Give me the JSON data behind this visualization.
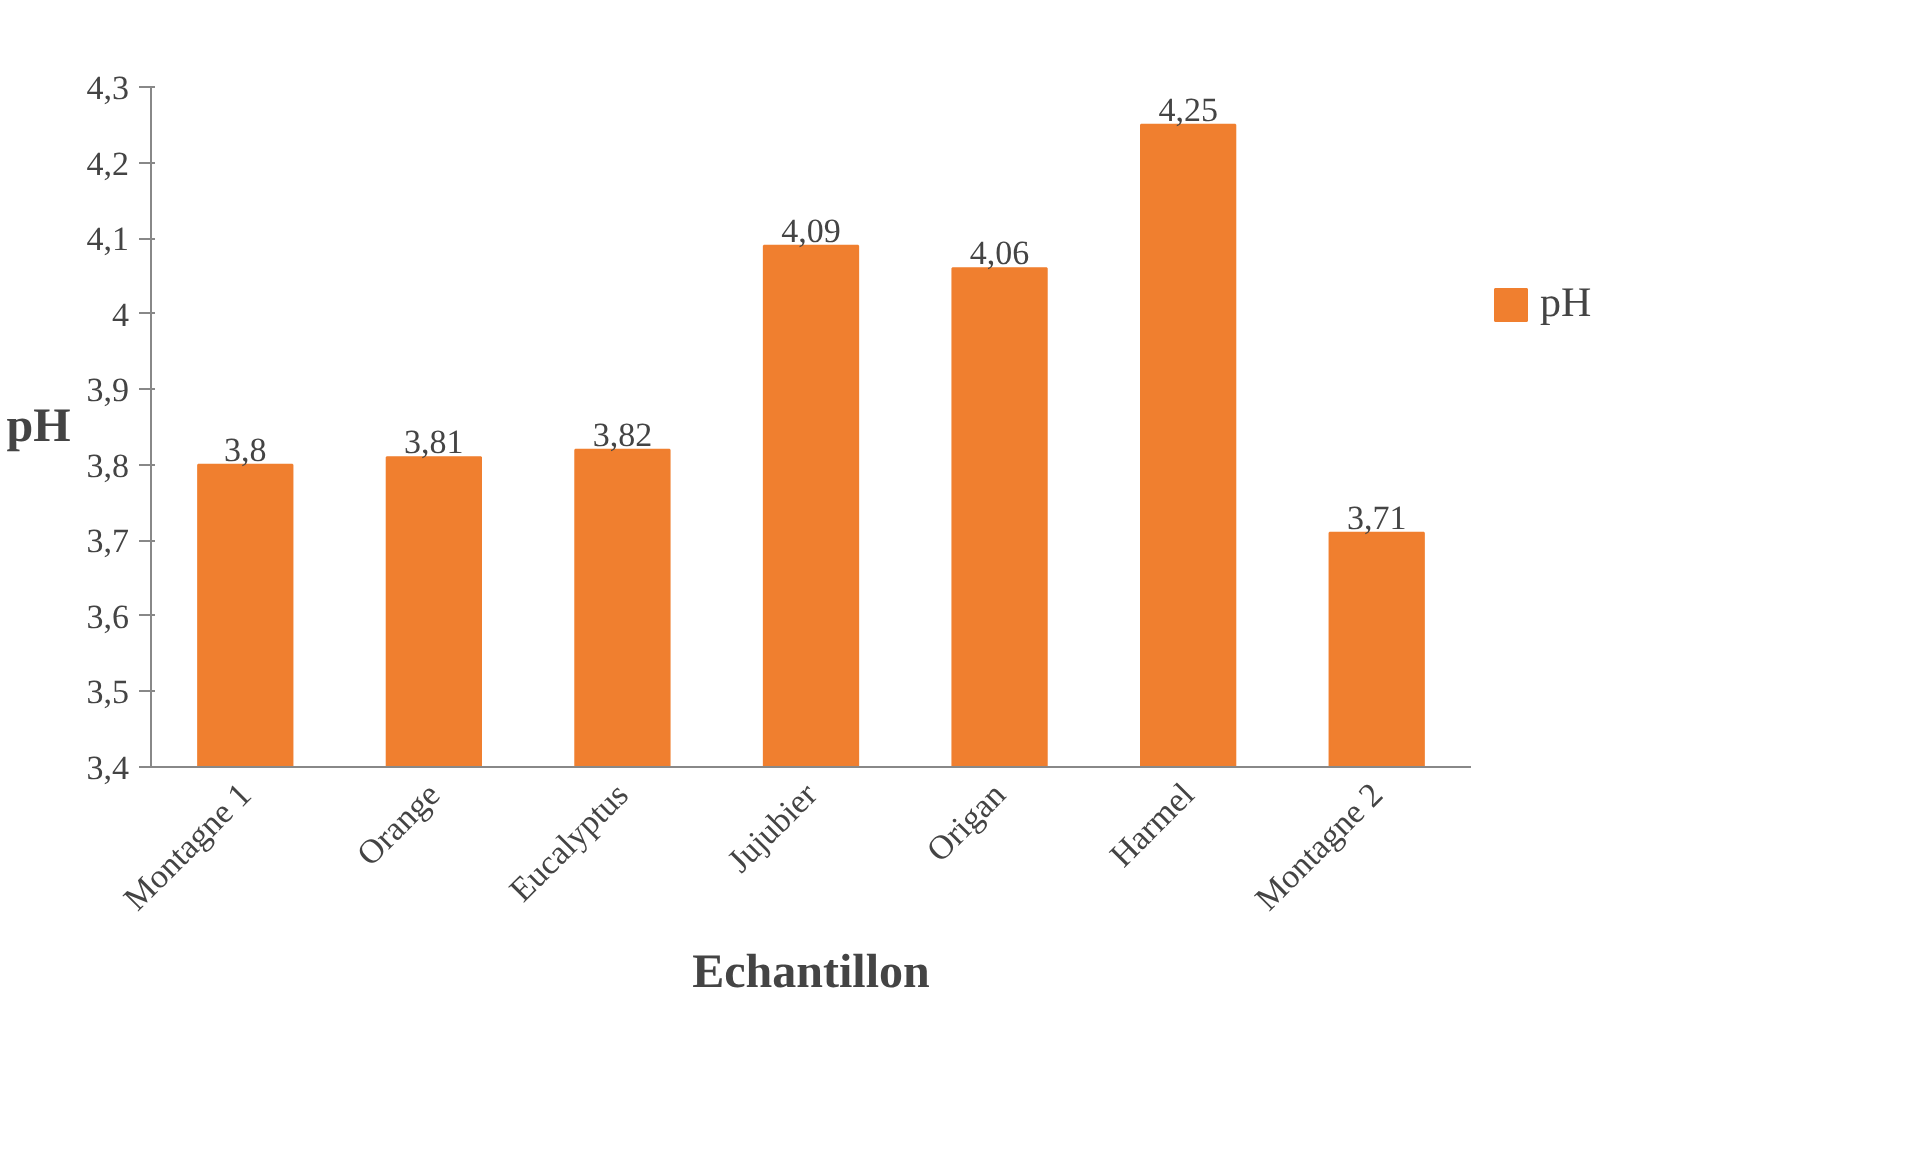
{
  "chart_data": {
    "type": "bar",
    "xlabel": "Echantillon",
    "ylabel": "pH",
    "categories": [
      "Montagne 1",
      "Orange",
      "Eucalyptus",
      "Jujubier",
      "Origan",
      "Harmel",
      "Montagne 2"
    ],
    "series": [
      {
        "name": "pH",
        "color": "#f07f2f",
        "values": [
          3.8,
          3.81,
          3.82,
          4.09,
          4.06,
          4.25,
          3.71
        ],
        "value_labels": [
          "3,8",
          "3,81",
          "3,82",
          "4,09",
          "4,06",
          "4,25",
          "3,71"
        ]
      }
    ],
    "ylim": [
      3.4,
      4.3
    ],
    "yticks": [
      {
        "value": 3.4,
        "label": "3,4"
      },
      {
        "value": 3.5,
        "label": "3,5"
      },
      {
        "value": 3.6,
        "label": "3,6"
      },
      {
        "value": 3.7,
        "label": "3,7"
      },
      {
        "value": 3.8,
        "label": "3,8"
      },
      {
        "value": 3.9,
        "label": "3,9"
      },
      {
        "value": 4,
        "label": "4"
      },
      {
        "value": 4.1,
        "label": "4,1"
      },
      {
        "value": 4.2,
        "label": "4,2"
      },
      {
        "value": 4.3,
        "label": "4,3"
      }
    ],
    "grid": false,
    "legend": "right"
  }
}
